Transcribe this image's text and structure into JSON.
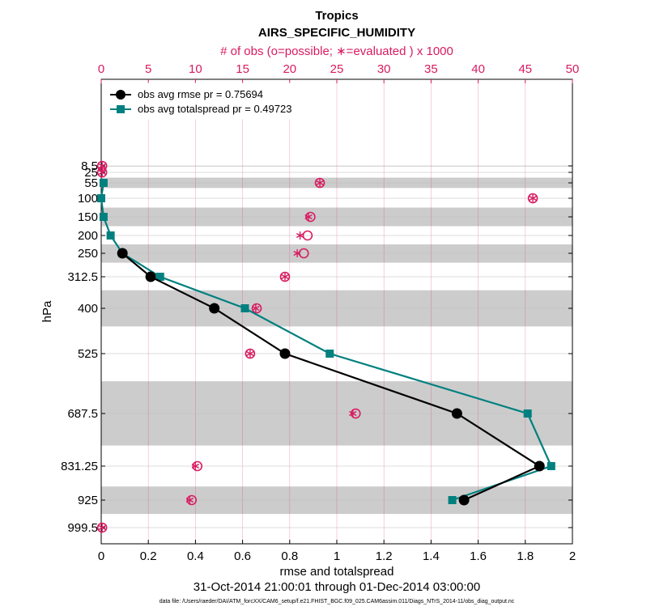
{
  "chart_data": {
    "type": "line",
    "title": "Tropics",
    "subtitle": "AIRS_SPECIFIC_HUMIDITY",
    "top_axis_label": "# of obs (o=possible; ∗=evaluated ) x 1000",
    "xlabel": "rmse and totalspread",
    "ylabel": "hPa",
    "date_range": "31-Oct-2014 21:00:01 through 01-Dec-2014 03:00:00",
    "footer": "data file: /Users/raeder/DAI/ATM_forcXX/CAM6_setup/f.e21.FHIST_BGC.f09_025.CAM6assim.011/Diags_NTrS_2014-11/obs_diag_output.nc",
    "xlim": [
      0,
      2
    ],
    "x_ticks": [
      "0",
      "0.2",
      "0.4",
      "0.6",
      "0.8",
      "1",
      "1.2",
      "1.4",
      "1.6",
      "1.8",
      "2"
    ],
    "top_xlim": [
      0,
      50
    ],
    "top_ticks": [
      "0",
      "5",
      "10",
      "15",
      "20",
      "25",
      "30",
      "35",
      "40",
      "45",
      "50"
    ],
    "levels": [
      "8.5",
      "25",
      "55",
      "100",
      "150",
      "200",
      "250",
      "312.5",
      "400",
      "525",
      "687.5",
      "831.25",
      "925",
      "999.5"
    ],
    "series": [
      {
        "name": "obs avg rmse pr = 0.75694",
        "color": "#000000",
        "marker": "circle",
        "points": [
          {
            "level": "250",
            "x": 0.09
          },
          {
            "level": "312.5",
            "x": 0.21
          },
          {
            "level": "400",
            "x": 0.48
          },
          {
            "level": "525",
            "x": 0.78
          },
          {
            "level": "687.5",
            "x": 1.51
          },
          {
            "level": "831.25",
            "x": 1.86
          },
          {
            "level": "925",
            "x": 1.54
          }
        ]
      },
      {
        "name": "obs avg totalspread pr = 0.49723",
        "color": "#00807f",
        "marker": "square",
        "points": [
          {
            "level": "55",
            "x": 0.01
          },
          {
            "level": "100",
            "x": 0.0
          },
          {
            "level": "150",
            "x": 0.01
          },
          {
            "level": "200",
            "x": 0.04
          },
          {
            "level": "250",
            "x": 0.09
          },
          {
            "level": "312.5",
            "x": 0.25
          },
          {
            "level": "400",
            "x": 0.61
          },
          {
            "level": "525",
            "x": 0.97
          },
          {
            "level": "687.5",
            "x": 1.81
          },
          {
            "level": "831.25",
            "x": 1.91
          },
          {
            "level": "925",
            "x": 1.49
          }
        ]
      }
    ],
    "obs_counts": {
      "units": "x 1000",
      "color": "#d81b60",
      "possible": [
        {
          "level": "8.5",
          "n": 0.1
        },
        {
          "level": "25",
          "n": 0.1
        },
        {
          "level": "55",
          "n": 23.2
        },
        {
          "level": "100",
          "n": 45.8
        },
        {
          "level": "150",
          "n": 22.2
        },
        {
          "level": "200",
          "n": 21.9
        },
        {
          "level": "250",
          "n": 21.5
        },
        {
          "level": "312.5",
          "n": 19.5
        },
        {
          "level": "400",
          "n": 16.5
        },
        {
          "level": "525",
          "n": 15.8
        },
        {
          "level": "687.5",
          "n": 27.0
        },
        {
          "level": "831.25",
          "n": 10.2
        },
        {
          "level": "925",
          "n": 9.6
        },
        {
          "level": "999.5",
          "n": 0.1
        }
      ],
      "evaluated": [
        {
          "level": "8.5",
          "n": 0.1
        },
        {
          "level": "25",
          "n": 0.1
        },
        {
          "level": "55",
          "n": 23.2
        },
        {
          "level": "100",
          "n": 45.8
        },
        {
          "level": "150",
          "n": 22.0
        },
        {
          "level": "200",
          "n": 21.1
        },
        {
          "level": "250",
          "n": 20.8
        },
        {
          "level": "312.5",
          "n": 19.5
        },
        {
          "level": "400",
          "n": 16.4
        },
        {
          "level": "525",
          "n": 15.8
        },
        {
          "level": "687.5",
          "n": 26.7
        },
        {
          "level": "831.25",
          "n": 10.0
        },
        {
          "level": "925",
          "n": 9.4
        },
        {
          "level": "999.5",
          "n": 0.1
        }
      ]
    },
    "shaded_layers": [
      [
        "5",
        "10"
      ],
      [
        "40",
        "70"
      ],
      [
        "125",
        "175"
      ],
      [
        "225",
        "275"
      ],
      [
        "350",
        "450"
      ],
      [
        "600",
        "775"
      ],
      [
        "887.5",
        "962.5"
      ]
    ]
  }
}
